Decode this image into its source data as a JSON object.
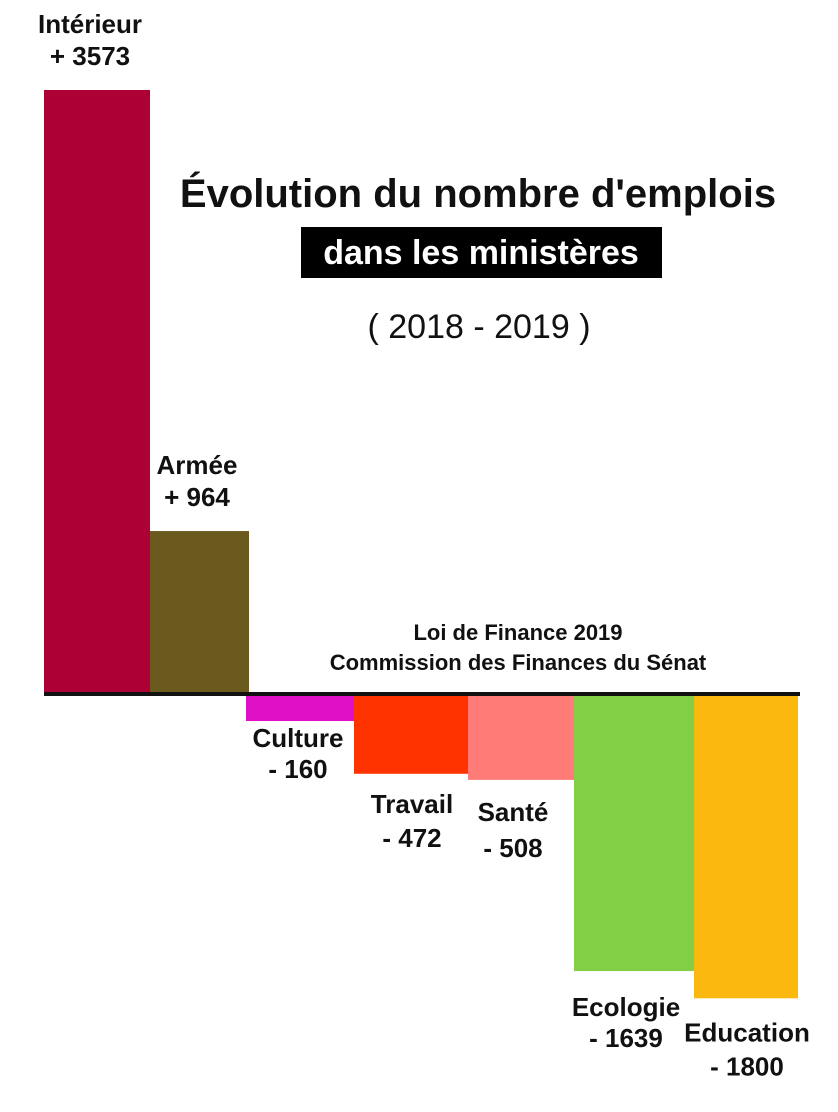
{
  "chart_data": {
    "type": "bar",
    "title": "Évolution du nombre d'emplois",
    "subtitle": "dans les ministères",
    "period": "( 2018 - 2019 )",
    "source_lines": [
      "Loi de Finance 2019",
      "Commission des Finances du Sénat"
    ],
    "xlabel": "",
    "ylabel": "",
    "categories": [
      "Intérieur",
      "Armée",
      "Culture",
      "Travail",
      "Santé",
      "Ecologie",
      "Education"
    ],
    "values": [
      3573,
      964,
      -160,
      -472,
      -508,
      -1639,
      -1800
    ],
    "value_labels": [
      "+ 3573",
      "+ 964",
      "- 160",
      "- 472",
      "- 508",
      "- 1639",
      "- 1800"
    ],
    "colors": [
      "#ad0034",
      "#6b5a1e",
      "#df10c6",
      "#ff3300",
      "#ff7b78",
      "#82cf45",
      "#fbb90f"
    ],
    "ylim": [
      -1800,
      3573
    ],
    "grid": false,
    "legend": "none"
  }
}
